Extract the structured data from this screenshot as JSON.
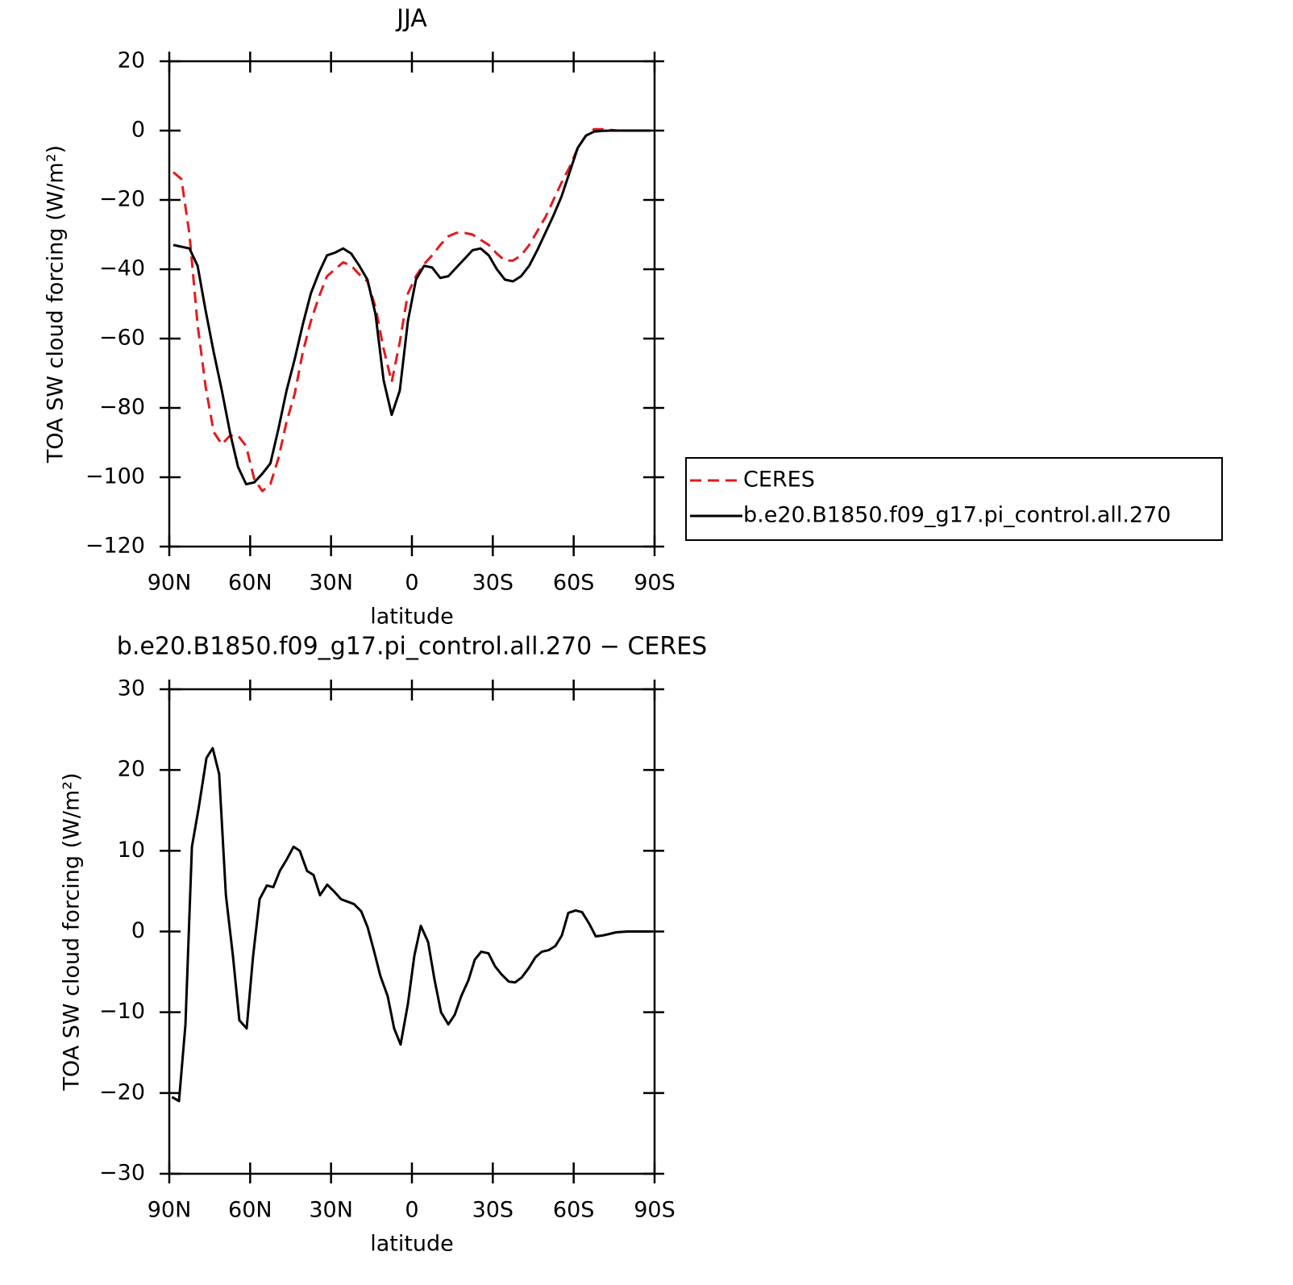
{
  "chart_data": [
    {
      "type": "line",
      "title": "JJA",
      "xlabel": "latitude",
      "ylabel": "TOA SW cloud forcing (W/m²)",
      "x": [
        88.5,
        85.5,
        82.5,
        79.5,
        76.5,
        73.5,
        70.5,
        67.5,
        64.5,
        61.5,
        58.5,
        55.5,
        52.5,
        49.5,
        46.5,
        43.5,
        40.5,
        37.5,
        34.5,
        31.5,
        28.5,
        25.5,
        22.5,
        19.5,
        16.5,
        13.5,
        10.5,
        7.5,
        4.5,
        1.5,
        -1.5,
        -4.5,
        -7.5,
        -10.5,
        -13.5,
        -16.5,
        -19.5,
        -22.5,
        -25.5,
        -28.5,
        -31.5,
        -34.5,
        -37.5,
        -40.5,
        -43.5,
        -46.5,
        -49.5,
        -52.5,
        -55.5,
        -58.5,
        -61.5,
        -64.5,
        -67.5,
        -70.5,
        -73.5,
        -76.5,
        -79.5,
        -82.5,
        -85.5,
        -88.5
      ],
      "series": [
        {
          "name": "CERES",
          "color": "#e31a1c",
          "dashed": true,
          "values": [
            -12,
            -14,
            -30,
            -56,
            -74,
            -87,
            -90.5,
            -88,
            -88,
            -91,
            -100.5,
            -104,
            -102,
            -94.5,
            -84,
            -76,
            -64,
            -55,
            -48,
            -42,
            -40,
            -38,
            -39,
            -41.5,
            -43.5,
            -51,
            -63,
            -72.5,
            -61,
            -47,
            -42,
            -38.5,
            -36,
            -33,
            -30.5,
            -29.5,
            -29.5,
            -30,
            -31.5,
            -33,
            -35.5,
            -37.5,
            -37.5,
            -36,
            -33,
            -29,
            -25,
            -20,
            -15,
            -10.5,
            -5,
            -1.5,
            0.4,
            0.4,
            0.2,
            0,
            0,
            0,
            0,
            0
          ]
        },
        {
          "name": "b.e20.B1850.f09_g17.pi_control.all.270",
          "color": "#000000",
          "dashed": false,
          "values": [
            -33,
            -33.5,
            -34,
            -39,
            -52,
            -64,
            -75,
            -87,
            -97,
            -102,
            -101.5,
            -99,
            -96,
            -86,
            -75,
            -66,
            -56,
            -47,
            -41,
            -36,
            -35.2,
            -34,
            -35.5,
            -39,
            -43,
            -53,
            -72,
            -82,
            -75,
            -55,
            -43,
            -39,
            -39.5,
            -42.5,
            -42,
            -39.5,
            -37,
            -34.5,
            -34,
            -36,
            -40,
            -43,
            -43.5,
            -42,
            -39,
            -34.5,
            -29.5,
            -24.5,
            -19,
            -12,
            -5,
            -1.5,
            -0.3,
            -0.1,
            0,
            0,
            0,
            0,
            0,
            0
          ]
        }
      ],
      "xlim": [
        90,
        -90
      ],
      "xticks": [
        {
          "value": 90,
          "label": "90N"
        },
        {
          "value": 60,
          "label": "60N"
        },
        {
          "value": 30,
          "label": "30N"
        },
        0,
        {
          "value": -30,
          "label": "30S"
        },
        {
          "value": -60,
          "label": "60S"
        },
        {
          "value": -90,
          "label": "90S"
        }
      ],
      "ylim": [
        -120,
        20
      ],
      "yticks": [
        {
          "value": -120,
          "label": "−120"
        },
        {
          "value": -100,
          "label": "−100"
        },
        {
          "value": -80,
          "label": "−80"
        },
        {
          "value": -60,
          "label": "−60"
        },
        {
          "value": -40,
          "label": "−40"
        },
        {
          "value": -20,
          "label": "−20"
        },
        0,
        20
      ],
      "legend": "outside-right"
    },
    {
      "type": "line",
      "title": "b.e20.B1850.f09_g17.pi_control.all.270 − CERES",
      "xlabel": "latitude",
      "ylabel": "TOA SW cloud forcing (W/m²)",
      "x": [
        89,
        86.4,
        84,
        81.6,
        79,
        76.2,
        73.9,
        71.5,
        69,
        66.4,
        64,
        61.3,
        58.9,
        56.5,
        53.8,
        51.4,
        49,
        46.3,
        43.9,
        41.6,
        38.9,
        36.5,
        34.1,
        31.4,
        29,
        26.3,
        23.9,
        21.5,
        18.8,
        16.4,
        14,
        11.7,
        9,
        6.6,
        4.2,
        1.5,
        -0.9,
        -3.3,
        -6,
        -8.4,
        -10.8,
        -13.5,
        -15.9,
        -18.3,
        -21,
        -23.3,
        -25.7,
        -28.4,
        -30.8,
        -33.2,
        -35.9,
        -38.3,
        -40.7,
        -43.4,
        -45.8,
        -48.2,
        -50.8,
        -53.2,
        -55.6,
        -58,
        -60.7,
        -63.1,
        -65.7,
        -68.2,
        -70.6,
        -73.3,
        -75.7,
        -80,
        -85,
        -89
      ],
      "series": [
        {
          "color": "#000000",
          "dashed": false,
          "values": [
            -20.5,
            -21,
            -11.5,
            10.5,
            15.5,
            21.5,
            22.7,
            19.5,
            4.5,
            -3,
            -11,
            -12,
            -3,
            4,
            5.7,
            5.5,
            7.5,
            9,
            10.5,
            10,
            7.5,
            7,
            4.5,
            5.8,
            5,
            4,
            3.7,
            3.4,
            2.5,
            0.5,
            -2.5,
            -5.5,
            -8,
            -12,
            -14,
            -9,
            -3,
            0.7,
            -1.3,
            -6,
            -10,
            -11.5,
            -10.3,
            -8,
            -6,
            -3.5,
            -2.5,
            -2.7,
            -4.3,
            -5.3,
            -6.2,
            -6.3,
            -5.7,
            -4.5,
            -3.2,
            -2.5,
            -2.3,
            -1.8,
            -0.5,
            2.3,
            2.6,
            2.4,
            1,
            -0.6,
            -0.5,
            -0.3,
            -0.1,
            0,
            0,
            0
          ]
        }
      ],
      "xlim": [
        90,
        -90
      ],
      "xticks": [
        {
          "value": 90,
          "label": "90N"
        },
        {
          "value": 60,
          "label": "60N"
        },
        {
          "value": 30,
          "label": "30N"
        },
        0,
        {
          "value": -30,
          "label": "30S"
        },
        {
          "value": -60,
          "label": "60S"
        },
        {
          "value": -90,
          "label": "90S"
        }
      ],
      "ylim": [
        -30,
        30
      ],
      "yticks": [
        {
          "value": -30,
          "label": "−30"
        },
        {
          "value": -20,
          "label": "−20"
        },
        {
          "value": -10,
          "label": "−10"
        },
        0,
        10,
        20,
        30
      ]
    }
  ]
}
